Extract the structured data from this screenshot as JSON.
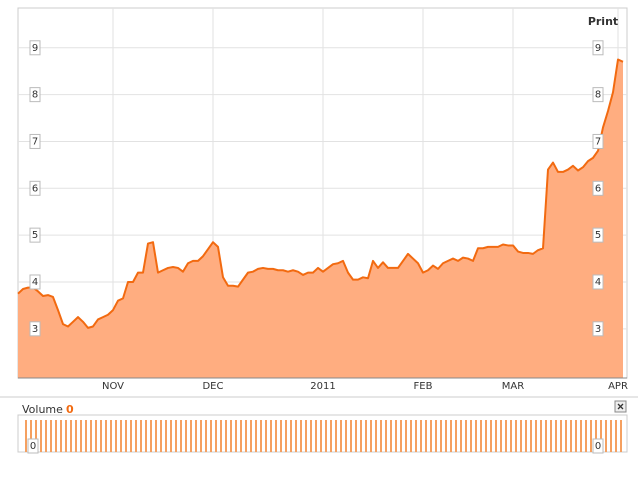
{
  "controls": {
    "print": "Print"
  },
  "chart_data": [
    {
      "type": "area",
      "categories": [
        null,
        null,
        null,
        null,
        null,
        null,
        null,
        null,
        null,
        null,
        null,
        null,
        null,
        null,
        null,
        null,
        null,
        null,
        null,
        "NOV",
        null,
        null,
        null,
        null,
        null,
        null,
        null,
        null,
        null,
        null,
        null,
        null,
        null,
        null,
        null,
        null,
        null,
        null,
        null,
        "DEC",
        null,
        null,
        null,
        null,
        null,
        null,
        null,
        null,
        null,
        null,
        null,
        null,
        null,
        null,
        null,
        null,
        null,
        null,
        null,
        null,
        null,
        "2011",
        null,
        null,
        null,
        null,
        null,
        null,
        null,
        null,
        null,
        null,
        null,
        null,
        null,
        null,
        null,
        null,
        null,
        null,
        null,
        "FEB",
        null,
        null,
        null,
        null,
        null,
        null,
        null,
        null,
        null,
        null,
        null,
        null,
        null,
        null,
        null,
        null,
        null,
        "MAR",
        null,
        null,
        null,
        null,
        null,
        null,
        null,
        null,
        null,
        null,
        null,
        null,
        null,
        null,
        null,
        null,
        null,
        null,
        null,
        null,
        "APR",
        null
      ],
      "series": [
        {
          "color": "#f26a10",
          "fill": "#ffad80",
          "values": [
            3.75,
            3.85,
            3.88,
            3.88,
            3.8,
            3.7,
            3.72,
            3.68,
            3.4,
            3.1,
            3.05,
            3.15,
            3.25,
            3.15,
            3.02,
            3.05,
            3.2,
            3.25,
            3.3,
            3.4,
            3.6,
            3.65,
            4.0,
            4.0,
            4.2,
            4.2,
            4.82,
            4.85,
            4.2,
            4.25,
            4.3,
            4.32,
            4.3,
            4.22,
            4.4,
            4.45,
            4.45,
            4.55,
            4.7,
            4.85,
            4.75,
            4.1,
            3.92,
            3.92,
            3.9,
            4.05,
            4.2,
            4.22,
            4.28,
            4.3,
            4.28,
            4.28,
            4.25,
            4.25,
            4.22,
            4.25,
            4.22,
            4.15,
            4.2,
            4.2,
            4.3,
            4.22,
            4.3,
            4.38,
            4.4,
            4.45,
            4.2,
            4.05,
            4.05,
            4.1,
            4.08,
            4.45,
            4.3,
            4.42,
            4.3,
            4.3,
            4.3,
            4.45,
            4.6,
            4.5,
            4.4,
            4.2,
            4.25,
            4.35,
            4.28,
            4.4,
            4.45,
            4.5,
            4.45,
            4.52,
            4.5,
            4.45,
            4.72,
            4.72,
            4.75,
            4.75,
            4.75,
            4.8,
            4.78,
            4.78,
            4.65,
            4.62,
            4.62,
            4.6,
            4.68,
            4.72,
            6.4,
            6.55,
            6.35,
            6.35,
            6.4,
            6.48,
            6.38,
            6.45,
            6.58,
            6.65,
            6.8,
            7.3,
            7.65,
            8.05,
            8.75,
            8.7
          ]
        }
      ],
      "ylim": [
        1.95,
        9.7
      ],
      "yticks": [
        3,
        4,
        5,
        6,
        7,
        8,
        9
      ],
      "grid": true
    },
    {
      "type": "volume",
      "title": "Volume",
      "current": 0,
      "yticks": [
        0
      ],
      "color": "#f26a10"
    }
  ]
}
